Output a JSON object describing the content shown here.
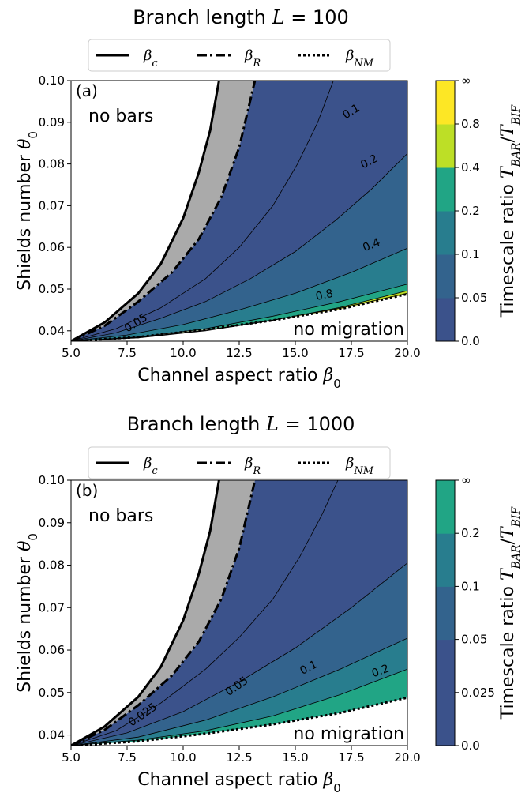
{
  "chart_data": [
    {
      "type": "contour",
      "panel_label": "(a)",
      "title_text": "Branch length ",
      "title_math": "L",
      "title_value": " = 100",
      "xlabel_text": "Channel aspect ratio ",
      "xlabel_math": "β",
      "xlabel_sub": "0",
      "ylabel_text": "Shields number ",
      "ylabel_math": "θ",
      "ylabel_sub": "0",
      "xlim": [
        5.0,
        20.0
      ],
      "ylim": [
        0.0375,
        0.1
      ],
      "xticks": [
        "5.0",
        "7.5",
        "10.0",
        "12.5",
        "15.0",
        "17.5",
        "20.0"
      ],
      "yticks": [
        "0.04",
        "0.05",
        "0.06",
        "0.07",
        "0.08",
        "0.09",
        "0.10"
      ],
      "legend": [
        {
          "style": "solid",
          "math": "β",
          "sub": "c"
        },
        {
          "style": "dashdot",
          "math": "β",
          "sub": "R"
        },
        {
          "style": "dotted",
          "math": "β",
          "sub": "NM"
        }
      ],
      "annotations": [
        "no bars",
        "no migration"
      ],
      "colorbar": {
        "label_text": "Timescale ratio ",
        "label_math": "T",
        "label_sub1": "BAR",
        "label_sub2": "BIF",
        "ticks": [
          "0.0",
          "0.05",
          "0.1",
          "0.2",
          "0.4",
          "0.8",
          "∞"
        ],
        "colors": [
          "#3b528b",
          "#33638d",
          "#287d8e",
          "#21a585",
          "#bddf26",
          "#fde725"
        ]
      },
      "contour_levels": [
        0.025,
        0.05,
        0.1,
        0.2,
        0.4,
        0.8
      ],
      "contour_labels": [
        {
          "text": "0.05",
          "x": 7.9,
          "y": 0.0418,
          "angle": -32
        },
        {
          "text": "0.1",
          "x": 17.5,
          "y": 0.0925,
          "angle": -32
        },
        {
          "text": "0.2",
          "x": 18.3,
          "y": 0.0805,
          "angle": -28
        },
        {
          "text": "0.4",
          "x": 18.4,
          "y": 0.0605,
          "angle": -22
        },
        {
          "text": "0.8",
          "x": 16.3,
          "y": 0.0485,
          "angle": -12
        }
      ],
      "curves": {
        "beta_c": [
          [
            5.0,
            0.0375
          ],
          [
            6.5,
            0.042
          ],
          [
            8.0,
            0.049
          ],
          [
            9.0,
            0.056
          ],
          [
            10.0,
            0.067
          ],
          [
            10.7,
            0.078
          ],
          [
            11.2,
            0.088
          ],
          [
            11.6,
            0.1
          ]
        ],
        "beta_R": [
          [
            5.0,
            0.0375
          ],
          [
            6.5,
            0.0412
          ],
          [
            8.0,
            0.047
          ],
          [
            9.5,
            0.054
          ],
          [
            10.7,
            0.062
          ],
          [
            11.7,
            0.072
          ],
          [
            12.5,
            0.084
          ],
          [
            13.2,
            0.1
          ]
        ],
        "beta_NM": [
          [
            5.0,
            0.0375
          ],
          [
            8.0,
            0.0385
          ],
          [
            11.0,
            0.0403
          ],
          [
            14.0,
            0.0425
          ],
          [
            17.0,
            0.0452
          ],
          [
            20.0,
            0.0488
          ]
        ]
      },
      "contours": [
        {
          "level": 0.025,
          "pts": [
            [
              5.0,
              0.0375
            ],
            [
              7.0,
              0.0405
            ],
            [
              9.0,
              0.0455
            ],
            [
              11.0,
              0.0525
            ],
            [
              12.5,
              0.06
            ],
            [
              14.0,
              0.07
            ],
            [
              15.1,
              0.08
            ],
            [
              16.0,
              0.09
            ],
            [
              16.7,
              0.1
            ]
          ]
        },
        {
          "level": 0.05,
          "pts": [
            [
              5.0,
              0.0375
            ],
            [
              7.0,
              0.0395
            ],
            [
              9.0,
              0.043
            ],
            [
              11.0,
              0.047
            ],
            [
              13.0,
              0.0525
            ],
            [
              15.0,
              0.059
            ],
            [
              16.8,
              0.0665
            ],
            [
              18.4,
              0.074
            ],
            [
              20.0,
              0.0825
            ]
          ]
        },
        {
          "level": 0.1,
          "pts": [
            [
              5.0,
              0.0375
            ],
            [
              7.5,
              0.039
            ],
            [
              10.0,
              0.0415
            ],
            [
              12.5,
              0.045
            ],
            [
              15.0,
              0.049
            ],
            [
              17.5,
              0.054
            ],
            [
              20.0,
              0.0598
            ]
          ]
        },
        {
          "level": 0.2,
          "pts": [
            [
              5.0,
              0.0375
            ],
            [
              8.0,
              0.0385
            ],
            [
              11.0,
              0.0405
            ],
            [
              14.0,
              0.0435
            ],
            [
              17.0,
              0.047
            ],
            [
              20.0,
              0.0512
            ]
          ]
        },
        {
          "level": 0.4,
          "pts": [
            [
              5.0,
              0.0375
            ],
            [
              8.0,
              0.0383
            ],
            [
              11.0,
              0.04
            ],
            [
              14.0,
              0.0425
            ],
            [
              17.0,
              0.0456
            ],
            [
              20.0,
              0.0496
            ]
          ]
        },
        {
          "level": 0.8,
          "pts": [
            [
              5.0,
              0.0375
            ],
            [
              8.0,
              0.0384
            ],
            [
              11.0,
              0.04015
            ],
            [
              14.0,
              0.0426
            ],
            [
              17.0,
              0.0454
            ],
            [
              20.0,
              0.049
            ]
          ]
        }
      ]
    },
    {
      "type": "contour",
      "panel_label": "(b)",
      "title_text": "Branch length ",
      "title_math": "L",
      "title_value": " = 1000",
      "xlabel_text": "Channel aspect ratio ",
      "xlabel_math": "β",
      "xlabel_sub": "0",
      "ylabel_text": "Shields number ",
      "ylabel_math": "θ",
      "ylabel_sub": "0",
      "xlim": [
        5.0,
        20.0
      ],
      "ylim": [
        0.0375,
        0.1
      ],
      "xticks": [
        "5.0",
        "7.5",
        "10.0",
        "12.5",
        "15.0",
        "17.5",
        "20.0"
      ],
      "yticks": [
        "0.04",
        "0.05",
        "0.06",
        "0.07",
        "0.08",
        "0.09",
        "0.10"
      ],
      "legend": [
        {
          "style": "solid",
          "math": "β",
          "sub": "c"
        },
        {
          "style": "dashdot",
          "math": "β",
          "sub": "R"
        },
        {
          "style": "dotted",
          "math": "β",
          "sub": "NM"
        }
      ],
      "annotations": [
        "no bars",
        "no migration"
      ],
      "colorbar": {
        "label_text": "Timescale ratio ",
        "label_math": "T",
        "label_sub1": "BAR",
        "label_sub2": "BIF",
        "ticks": [
          "0.0",
          "0.025",
          "0.05",
          "0.1",
          "0.2",
          "∞"
        ],
        "colors": [
          "#3b528b",
          "#3b528b",
          "#33638d",
          "#287d8e",
          "#21a585"
        ]
      },
      "contour_levels": [
        0.025,
        0.05,
        0.1,
        0.2
      ],
      "contour_labels": [
        {
          "text": "0.025",
          "x": 8.2,
          "y": 0.0447,
          "angle": -35
        },
        {
          "text": "0.05",
          "x": 12.4,
          "y": 0.0514,
          "angle": -35
        },
        {
          "text": "0.1",
          "x": 15.6,
          "y": 0.0558,
          "angle": -27
        },
        {
          "text": "0.2",
          "x": 18.8,
          "y": 0.055,
          "angle": -20
        }
      ],
      "curves": {
        "beta_c": [
          [
            5.0,
            0.0375
          ],
          [
            6.5,
            0.042
          ],
          [
            8.0,
            0.049
          ],
          [
            9.0,
            0.056
          ],
          [
            10.0,
            0.067
          ],
          [
            10.7,
            0.078
          ],
          [
            11.2,
            0.088
          ],
          [
            11.6,
            0.1
          ]
        ],
        "beta_R": [
          [
            5.0,
            0.0375
          ],
          [
            6.5,
            0.0412
          ],
          [
            8.0,
            0.047
          ],
          [
            9.5,
            0.054
          ],
          [
            10.7,
            0.062
          ],
          [
            11.7,
            0.072
          ],
          [
            12.5,
            0.084
          ],
          [
            13.2,
            0.1
          ]
        ],
        "beta_NM": [
          [
            5.0,
            0.0375
          ],
          [
            8.0,
            0.0385
          ],
          [
            11.0,
            0.0403
          ],
          [
            14.0,
            0.0425
          ],
          [
            17.0,
            0.0452
          ],
          [
            20.0,
            0.0488
          ]
        ]
      },
      "contours": [
        {
          "level": 0.025,
          "pts": [
            [
              5.0,
              0.0375
            ],
            [
              7.0,
              0.041
            ],
            [
              9.0,
              0.0475
            ],
            [
              11.0,
              0.0555
            ],
            [
              12.5,
              0.063
            ],
            [
              14.0,
              0.072
            ],
            [
              15.2,
              0.082
            ],
            [
              16.2,
              0.092
            ],
            [
              16.9,
              0.1
            ]
          ]
        },
        {
          "level": 0.05,
          "pts": [
            [
              5.0,
              0.0375
            ],
            [
              7.5,
              0.0405
            ],
            [
              10.0,
              0.0455
            ],
            [
              12.5,
              0.0525
            ],
            [
              15.0,
              0.0605
            ],
            [
              17.5,
              0.07
            ],
            [
              20.0,
              0.0805
            ]
          ]
        },
        {
          "level": 0.1,
          "pts": [
            [
              5.0,
              0.0375
            ],
            [
              8.0,
              0.0395
            ],
            [
              11.0,
              0.0435
            ],
            [
              14.0,
              0.049
            ],
            [
              17.0,
              0.0555
            ],
            [
              20.0,
              0.0628
            ]
          ]
        },
        {
          "level": 0.2,
          "pts": [
            [
              5.0,
              0.0375
            ],
            [
              8.0,
              0.0388
            ],
            [
              11.0,
              0.041
            ],
            [
              14.0,
              0.0445
            ],
            [
              17.0,
              0.0495
            ],
            [
              20.0,
              0.0555
            ]
          ]
        }
      ]
    }
  ]
}
